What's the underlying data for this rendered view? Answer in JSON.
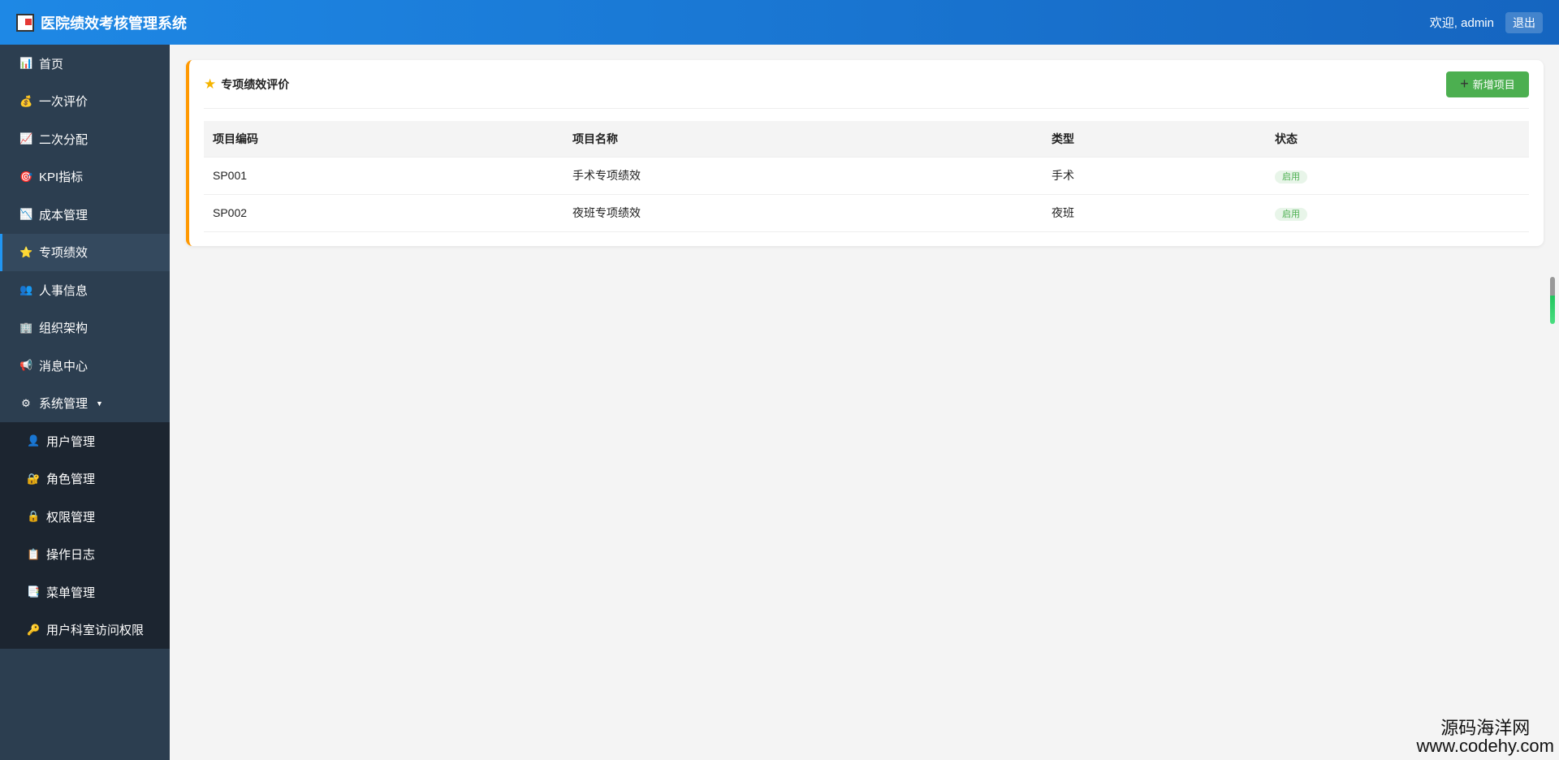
{
  "header": {
    "title": "医院绩效考核管理系统",
    "welcome": "欢迎, admin",
    "logout": "退出"
  },
  "sidebar": {
    "items": [
      {
        "label": "首页",
        "icon": "📊"
      },
      {
        "label": "一次评价",
        "icon": "💰"
      },
      {
        "label": "二次分配",
        "icon": "📈"
      },
      {
        "label": "KPI指标",
        "icon": "🎯"
      },
      {
        "label": "成本管理",
        "icon": "📉"
      },
      {
        "label": "专项绩效",
        "icon": "⭐"
      },
      {
        "label": "人事信息",
        "icon": "👥"
      },
      {
        "label": "组织架构",
        "icon": "🏢"
      },
      {
        "label": "消息中心",
        "icon": "📢"
      },
      {
        "label": "系统管理",
        "icon": "⚙"
      }
    ],
    "submenu": [
      {
        "label": "用户管理",
        "icon": "👤"
      },
      {
        "label": "角色管理",
        "icon": "🔐"
      },
      {
        "label": "权限管理",
        "icon": "🔒"
      },
      {
        "label": "操作日志",
        "icon": "📋"
      },
      {
        "label": "菜单管理",
        "icon": "📑"
      },
      {
        "label": "用户科室访问权限",
        "icon": "🔑"
      }
    ]
  },
  "main": {
    "title": "专项绩效评价",
    "add_button": "新增项目",
    "columns": [
      "项目编码",
      "项目名称",
      "类型",
      "状态"
    ],
    "rows": [
      [
        "SP001",
        "手术专项绩效",
        "手术",
        "启用"
      ],
      [
        "SP002",
        "夜班专项绩效",
        "夜班",
        "启用"
      ]
    ]
  },
  "watermark": {
    "line1": "源码海洋网",
    "line2": "www.codehy.com"
  },
  "colors": {
    "header": "#1e88e5",
    "sidebar": "#2c3e50",
    "accent": "#ff9800",
    "add": "#4caf50"
  }
}
